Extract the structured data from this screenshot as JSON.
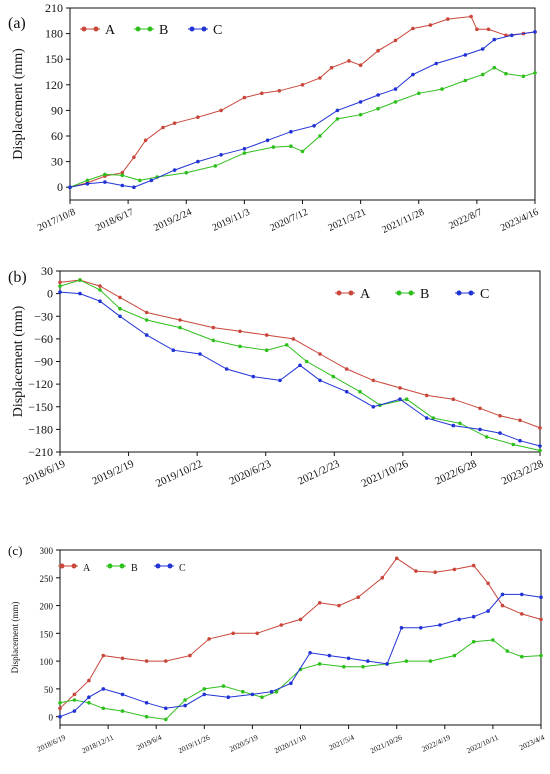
{
  "colors": {
    "A": "#c9463b",
    "B": "#2fbf1c",
    "C": "#2233d6"
  },
  "chart_data": [
    {
      "type": "line",
      "panel_label": "(a)",
      "ylabel": "Displacement (mm)",
      "ylim": [
        -15,
        210
      ],
      "yticks": [
        "0",
        "30",
        "60",
        "90",
        "120",
        "150",
        "180",
        "210"
      ],
      "xticks": [
        "2017/10/8",
        "2018/6/17",
        "2019/2/24",
        "2019/11/3",
        "2020/7/12",
        "2021/3/21",
        "2021/11/28",
        "2022/8/7",
        "2023/4/16"
      ],
      "x_range": [
        0,
        8
      ],
      "legend": {
        "position": "top-left",
        "items": [
          "A",
          "B",
          "C"
        ]
      },
      "series": [
        {
          "name": "A",
          "color_key": "A",
          "x": [
            0,
            0.3,
            0.6,
            0.9,
            1.1,
            1.3,
            1.6,
            1.8,
            2.2,
            2.6,
            3.0,
            3.3,
            3.6,
            4.0,
            4.3,
            4.5,
            4.8,
            5.0,
            5.3,
            5.6,
            5.9,
            6.2,
            6.5,
            6.9,
            7.0,
            7.2,
            7.5,
            7.8,
            8.0
          ],
          "values": [
            0,
            5,
            13,
            17,
            35,
            55,
            70,
            75,
            82,
            90,
            105,
            110,
            113,
            120,
            128,
            140,
            148,
            143,
            160,
            172,
            186,
            190,
            197,
            200,
            185,
            185,
            178,
            180,
            182
          ]
        },
        {
          "name": "B",
          "color_key": "B",
          "x": [
            0,
            0.3,
            0.6,
            0.9,
            1.2,
            1.5,
            2.0,
            2.5,
            3.0,
            3.5,
            3.8,
            4.0,
            4.3,
            4.6,
            5.0,
            5.3,
            5.6,
            6.0,
            6.4,
            6.8,
            7.1,
            7.3,
            7.5,
            7.8,
            8.0
          ],
          "values": [
            0,
            8,
            15,
            14,
            8,
            12,
            17,
            25,
            40,
            47,
            48,
            42,
            60,
            80,
            85,
            92,
            100,
            110,
            115,
            125,
            132,
            140,
            133,
            130,
            134
          ]
        },
        {
          "name": "C",
          "color_key": "C",
          "x": [
            0,
            0.3,
            0.6,
            0.9,
            1.1,
            1.4,
            1.8,
            2.2,
            2.6,
            3.0,
            3.4,
            3.8,
            4.2,
            4.6,
            5.0,
            5.3,
            5.6,
            5.9,
            6.3,
            6.8,
            7.1,
            7.3,
            7.6,
            8.0
          ],
          "values": [
            0,
            4,
            6,
            2,
            0,
            8,
            20,
            30,
            38,
            45,
            55,
            65,
            72,
            90,
            100,
            108,
            115,
            132,
            145,
            155,
            162,
            173,
            178,
            182
          ]
        }
      ]
    },
    {
      "type": "line",
      "panel_label": "(b)",
      "ylabel": "Displacement (mm)",
      "ylim": [
        -210,
        30
      ],
      "yticks": [
        "30",
        "0",
        "−30",
        "−60",
        "−90",
        "−120",
        "−150",
        "−180",
        "−210"
      ],
      "xticks": [
        "2018/6/19",
        "2019/2/19",
        "2019/10/22",
        "2020/6/23",
        "2021/2/23",
        "2021/10/26",
        "2022/6/28",
        "2023/2/28"
      ],
      "x_range": [
        0,
        7.2
      ],
      "legend": {
        "position": "top-right",
        "items": [
          "A",
          "B",
          "C"
        ]
      },
      "series": [
        {
          "name": "A",
          "color_key": "A",
          "x": [
            0,
            0.3,
            0.6,
            0.9,
            1.3,
            1.8,
            2.3,
            2.7,
            3.1,
            3.5,
            3.9,
            4.3,
            4.7,
            5.1,
            5.5,
            5.9,
            6.3,
            6.6,
            6.9,
            7.2
          ],
          "values": [
            15,
            18,
            10,
            -5,
            -25,
            -35,
            -45,
            -50,
            -55,
            -60,
            -80,
            -100,
            -115,
            -125,
            -135,
            -140,
            -152,
            -162,
            -168,
            -178
          ]
        },
        {
          "name": "B",
          "color_key": "B",
          "x": [
            0,
            0.3,
            0.6,
            0.9,
            1.3,
            1.8,
            2.3,
            2.7,
            3.1,
            3.4,
            3.7,
            4.1,
            4.5,
            4.8,
            5.2,
            5.6,
            6.0,
            6.4,
            6.8,
            7.2
          ],
          "values": [
            10,
            18,
            5,
            -20,
            -35,
            -45,
            -62,
            -70,
            -75,
            -68,
            -90,
            -110,
            -130,
            -148,
            -140,
            -165,
            -172,
            -190,
            -200,
            -208
          ]
        },
        {
          "name": "C",
          "color_key": "C",
          "x": [
            0,
            0.3,
            0.6,
            0.9,
            1.3,
            1.7,
            2.1,
            2.5,
            2.9,
            3.3,
            3.6,
            3.9,
            4.3,
            4.7,
            5.1,
            5.5,
            5.9,
            6.3,
            6.6,
            6.9,
            7.2
          ],
          "values": [
            2,
            0,
            -10,
            -30,
            -55,
            -75,
            -80,
            -100,
            -110,
            -115,
            -95,
            -115,
            -130,
            -150,
            -140,
            -165,
            -175,
            -180,
            -185,
            -195,
            -202
          ]
        }
      ]
    },
    {
      "type": "line",
      "panel_label": "(c)",
      "ylabel": "Displacement (mm)",
      "ylim": [
        -15,
        300
      ],
      "yticks": [
        "0",
        "50",
        "100",
        "150",
        "200",
        "250",
        "300"
      ],
      "xticks": [
        "2018/6/19",
        "2018/12/11",
        "2019/6/4",
        "2019/11/26",
        "2020/5/19",
        "2020/11/10",
        "2021/5/4",
        "2021/10/26",
        "2022/4/19",
        "2022/10/11",
        "2023/4/4"
      ],
      "x_range": [
        0,
        10
      ],
      "legend": {
        "position": "top-left",
        "items": [
          "A",
          "B",
          "C"
        ]
      },
      "series": [
        {
          "name": "A",
          "color_key": "A",
          "x": [
            0,
            0.3,
            0.6,
            0.9,
            1.3,
            1.8,
            2.2,
            2.7,
            3.1,
            3.6,
            4.1,
            4.6,
            5.0,
            5.4,
            5.8,
            6.2,
            6.7,
            7.0,
            7.4,
            7.8,
            8.2,
            8.6,
            8.9,
            9.2,
            9.6,
            10.0
          ],
          "values": [
            15,
            40,
            65,
            110,
            105,
            100,
            100,
            110,
            140,
            150,
            150,
            165,
            175,
            205,
            200,
            215,
            250,
            285,
            262,
            260,
            265,
            272,
            240,
            200,
            185,
            175
          ]
        },
        {
          "name": "B",
          "color_key": "B",
          "x": [
            0,
            0.3,
            0.6,
            0.9,
            1.3,
            1.8,
            2.2,
            2.6,
            3.0,
            3.4,
            3.8,
            4.2,
            4.5,
            5.0,
            5.4,
            5.9,
            6.3,
            6.8,
            7.2,
            7.7,
            8.2,
            8.6,
            9.0,
            9.3,
            9.6,
            10.0
          ],
          "values": [
            25,
            30,
            25,
            15,
            10,
            0,
            -5,
            30,
            50,
            55,
            45,
            35,
            45,
            85,
            95,
            90,
            90,
            95,
            100,
            100,
            110,
            135,
            138,
            118,
            108,
            110
          ]
        },
        {
          "name": "C",
          "color_key": "C",
          "x": [
            0,
            0.3,
            0.6,
            0.9,
            1.3,
            1.8,
            2.2,
            2.6,
            3.0,
            3.5,
            4.0,
            4.4,
            4.8,
            5.2,
            5.6,
            6.0,
            6.4,
            6.8,
            7.1,
            7.5,
            7.9,
            8.3,
            8.6,
            8.9,
            9.2,
            9.6,
            10.0
          ],
          "values": [
            0,
            10,
            35,
            50,
            40,
            25,
            15,
            20,
            40,
            35,
            40,
            45,
            60,
            115,
            110,
            105,
            100,
            95,
            160,
            160,
            165,
            175,
            180,
            190,
            220,
            220,
            215
          ]
        }
      ]
    }
  ]
}
